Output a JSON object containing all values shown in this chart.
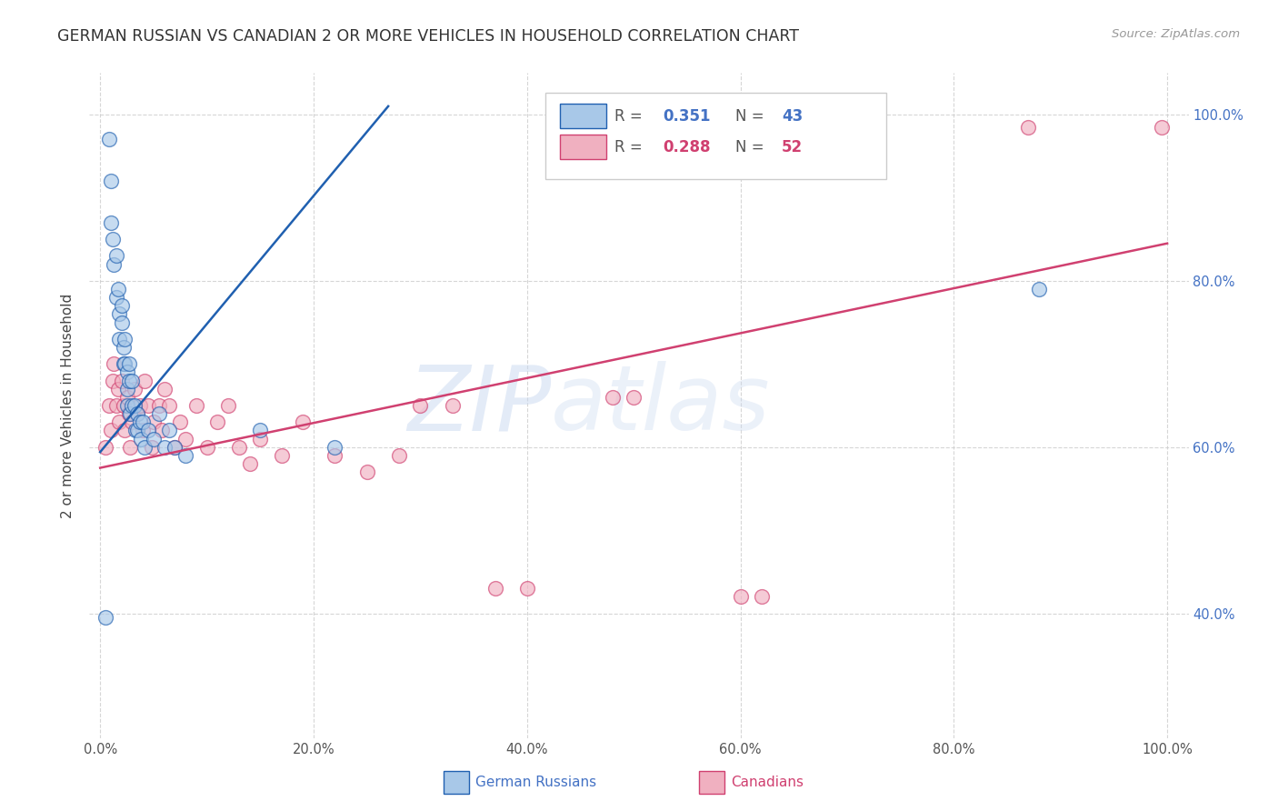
{
  "title": "GERMAN RUSSIAN VS CANADIAN 2 OR MORE VEHICLES IN HOUSEHOLD CORRELATION CHART",
  "source": "Source: ZipAtlas.com",
  "ylabel": "2 or more Vehicles in Household",
  "xlabel_blue": "German Russians",
  "xlabel_pink": "Canadians",
  "blue_color": "#a8c8e8",
  "blue_line_color": "#2060b0",
  "pink_color": "#f0b0c0",
  "pink_line_color": "#d04070",
  "watermark_zip": "ZIP",
  "watermark_atlas": "atlas",
  "xlim": [
    0.0,
    1.0
  ],
  "ylim": [
    0.25,
    1.05
  ],
  "xticks": [
    0.0,
    0.2,
    0.4,
    0.6,
    0.8,
    1.0
  ],
  "yticks": [
    0.4,
    0.6,
    0.8,
    1.0
  ],
  "xticklabels": [
    "0.0%",
    "20.0%",
    "40.0%",
    "60.0%",
    "80.0%",
    "100.0%"
  ],
  "yticklabels_right": [
    "40.0%",
    "60.0%",
    "80.0%",
    "100.0%"
  ],
  "blue_x": [
    0.005,
    0.008,
    0.01,
    0.01,
    0.012,
    0.013,
    0.015,
    0.015,
    0.017,
    0.018,
    0.018,
    0.02,
    0.02,
    0.022,
    0.022,
    0.023,
    0.023,
    0.025,
    0.025,
    0.025,
    0.027,
    0.027,
    0.028,
    0.03,
    0.03,
    0.032,
    0.033,
    0.035,
    0.035,
    0.037,
    0.038,
    0.04,
    0.042,
    0.045,
    0.05,
    0.055,
    0.06,
    0.065,
    0.07,
    0.08,
    0.15,
    0.22,
    0.88
  ],
  "blue_y": [
    0.395,
    0.97,
    0.92,
    0.87,
    0.85,
    0.82,
    0.83,
    0.78,
    0.79,
    0.76,
    0.73,
    0.77,
    0.75,
    0.72,
    0.7,
    0.73,
    0.7,
    0.69,
    0.67,
    0.65,
    0.7,
    0.68,
    0.64,
    0.68,
    0.65,
    0.65,
    0.62,
    0.64,
    0.62,
    0.63,
    0.61,
    0.63,
    0.6,
    0.62,
    0.61,
    0.64,
    0.6,
    0.62,
    0.6,
    0.59,
    0.62,
    0.6,
    0.79
  ],
  "pink_x": [
    0.005,
    0.008,
    0.01,
    0.012,
    0.013,
    0.015,
    0.017,
    0.018,
    0.02,
    0.022,
    0.023,
    0.025,
    0.027,
    0.028,
    0.03,
    0.032,
    0.035,
    0.037,
    0.04,
    0.042,
    0.045,
    0.048,
    0.05,
    0.055,
    0.058,
    0.06,
    0.065,
    0.07,
    0.075,
    0.08,
    0.09,
    0.1,
    0.11,
    0.12,
    0.13,
    0.14,
    0.15,
    0.17,
    0.19,
    0.22,
    0.25,
    0.28,
    0.3,
    0.33,
    0.37,
    0.4,
    0.48,
    0.5,
    0.6,
    0.62,
    0.87,
    0.995
  ],
  "pink_y": [
    0.6,
    0.65,
    0.62,
    0.68,
    0.7,
    0.65,
    0.67,
    0.63,
    0.68,
    0.65,
    0.62,
    0.66,
    0.64,
    0.6,
    0.63,
    0.67,
    0.64,
    0.65,
    0.62,
    0.68,
    0.65,
    0.6,
    0.63,
    0.65,
    0.62,
    0.67,
    0.65,
    0.6,
    0.63,
    0.61,
    0.65,
    0.6,
    0.63,
    0.65,
    0.6,
    0.58,
    0.61,
    0.59,
    0.63,
    0.59,
    0.57,
    0.59,
    0.65,
    0.65,
    0.43,
    0.43,
    0.66,
    0.66,
    0.42,
    0.42,
    0.985,
    0.985
  ],
  "blue_regline_x": [
    0.0,
    0.27
  ],
  "blue_regline_y": [
    0.594,
    1.01
  ],
  "pink_regline_x": [
    0.0,
    1.0
  ],
  "pink_regline_y": [
    0.575,
    0.845
  ]
}
